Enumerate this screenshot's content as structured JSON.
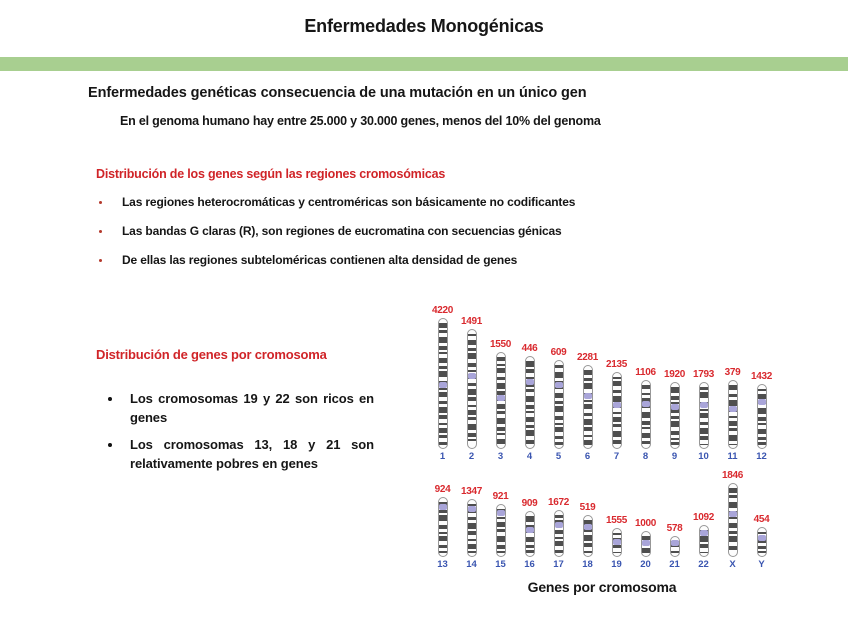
{
  "content": {
    "title": "Enfermedades Monogénicas",
    "heading": "Enfermedades genéticas consecuencia de una mutación en un único gen",
    "subheading": "En el genoma humano hay entre 25.000 y 30.000 genes, menos del 10% del genoma",
    "section1": {
      "heading": "Distribución de los genes según las regiones cromosómicas",
      "bullets": [
        "Las regiones heterocromáticas y centroméricas son básicamente no codificantes",
        "Las bandas G claras (R), son regiones de eucromatina con secuencias génicas",
        "De ellas las regiones subteloméricas contienen alta densidad de genes"
      ]
    },
    "section2": {
      "heading": "Distribución de genes por cromosoma",
      "bullets": [
        "Los cromosomas 19 y 22  son ricos en genes",
        "Los cromosomas 13, 18 y 21 son relativamente pobres en  genes"
      ]
    },
    "figure_caption": "Genes por cromosoma"
  },
  "colors": {
    "accent_green": "#a8cf90",
    "heading_red": "#d02428",
    "count_red": "#d9292e",
    "label_blue": "#3a55b0",
    "band_gray": "#4e4e4e",
    "centromere_lavender": "#a9a5d9",
    "text_black": "#161616"
  },
  "chart_data": {
    "type": "bar",
    "variant": "chromosome-ideogram-karyogram",
    "title": "Genes por cromosoma",
    "value_unit": "genes",
    "legend_position": "none",
    "rows": [
      {
        "items": [
          {
            "chr": "1",
            "genes": 4220,
            "size": 131,
            "cen": 0.5
          },
          {
            "chr": "2",
            "genes": 1491,
            "size": 120,
            "cen": 0.38
          },
          {
            "chr": "3",
            "genes": 1550,
            "size": 97,
            "cen": 0.46
          },
          {
            "chr": "4",
            "genes": 446,
            "size": 93,
            "cen": 0.27
          },
          {
            "chr": "5",
            "genes": 609,
            "size": 89,
            "cen": 0.27
          },
          {
            "chr": "6",
            "genes": 2281,
            "size": 84,
            "cen": 0.36
          },
          {
            "chr": "7",
            "genes": 2135,
            "size": 77,
            "cen": 0.41
          },
          {
            "chr": "8",
            "genes": 1106,
            "size": 69,
            "cen": 0.33
          },
          {
            "chr": "9",
            "genes": 1920,
            "size": 67,
            "cen": 0.36
          },
          {
            "chr": "10",
            "genes": 1793,
            "size": 67,
            "cen": 0.33
          },
          {
            "chr": "11",
            "genes": 379,
            "size": 69,
            "cen": 0.4
          },
          {
            "chr": "12",
            "genes": 1432,
            "size": 65,
            "cen": 0.26
          }
        ]
      },
      {
        "items": [
          {
            "chr": "13",
            "genes": 924,
            "size": 60,
            "cen": 0.15
          },
          {
            "chr": "14",
            "genes": 1347,
            "size": 58,
            "cen": 0.15
          },
          {
            "chr": "15",
            "genes": 921,
            "size": 53,
            "cen": 0.16
          },
          {
            "chr": "16",
            "genes": 909,
            "size": 46,
            "cen": 0.4
          },
          {
            "chr": "17",
            "genes": 1672,
            "size": 47,
            "cen": 0.3
          },
          {
            "chr": "18",
            "genes": 519,
            "size": 42,
            "cen": 0.26
          },
          {
            "chr": "19",
            "genes": 1555,
            "size": 29,
            "cen": 0.46
          },
          {
            "chr": "20",
            "genes": 1000,
            "size": 26,
            "cen": 0.44
          },
          {
            "chr": "21",
            "genes": 578,
            "size": 21,
            "cen": 0.28
          },
          {
            "chr": "22",
            "genes": 1092,
            "size": 32,
            "cen": 0.22
          },
          {
            "chr": "X",
            "genes": 1846,
            "size": 74,
            "cen": 0.4
          },
          {
            "chr": "Y",
            "genes": 454,
            "size": 30,
            "cen": 0.32
          }
        ]
      }
    ]
  }
}
